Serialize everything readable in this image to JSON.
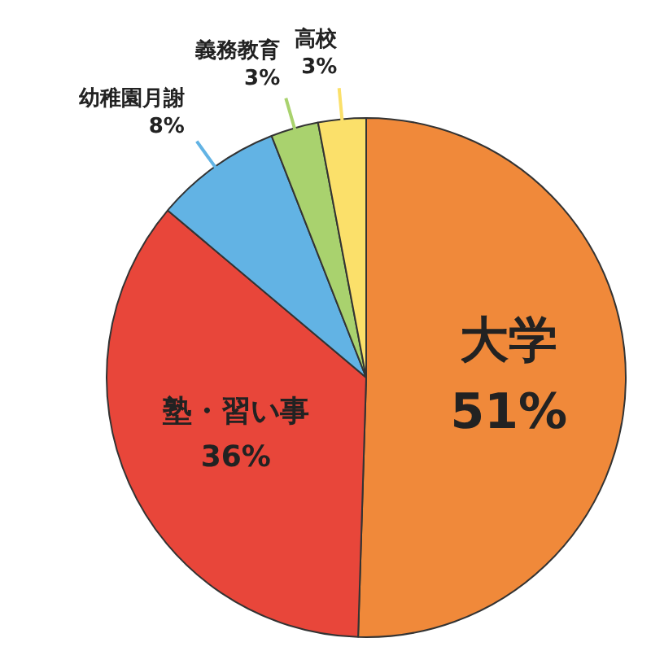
{
  "chart_data": {
    "type": "pie",
    "categories": [
      "大学",
      "塾・習い事",
      "幼稚園月謝",
      "義務教育",
      "高校"
    ],
    "values": [
      51,
      36,
      8,
      3,
      3
    ],
    "value_labels": [
      "51%",
      "36%",
      "8%",
      "3%",
      "3%"
    ],
    "colors": [
      "#f0893a",
      "#e8463a",
      "#62b3e4",
      "#a9d26e",
      "#fbe06a"
    ],
    "legend": false
  }
}
